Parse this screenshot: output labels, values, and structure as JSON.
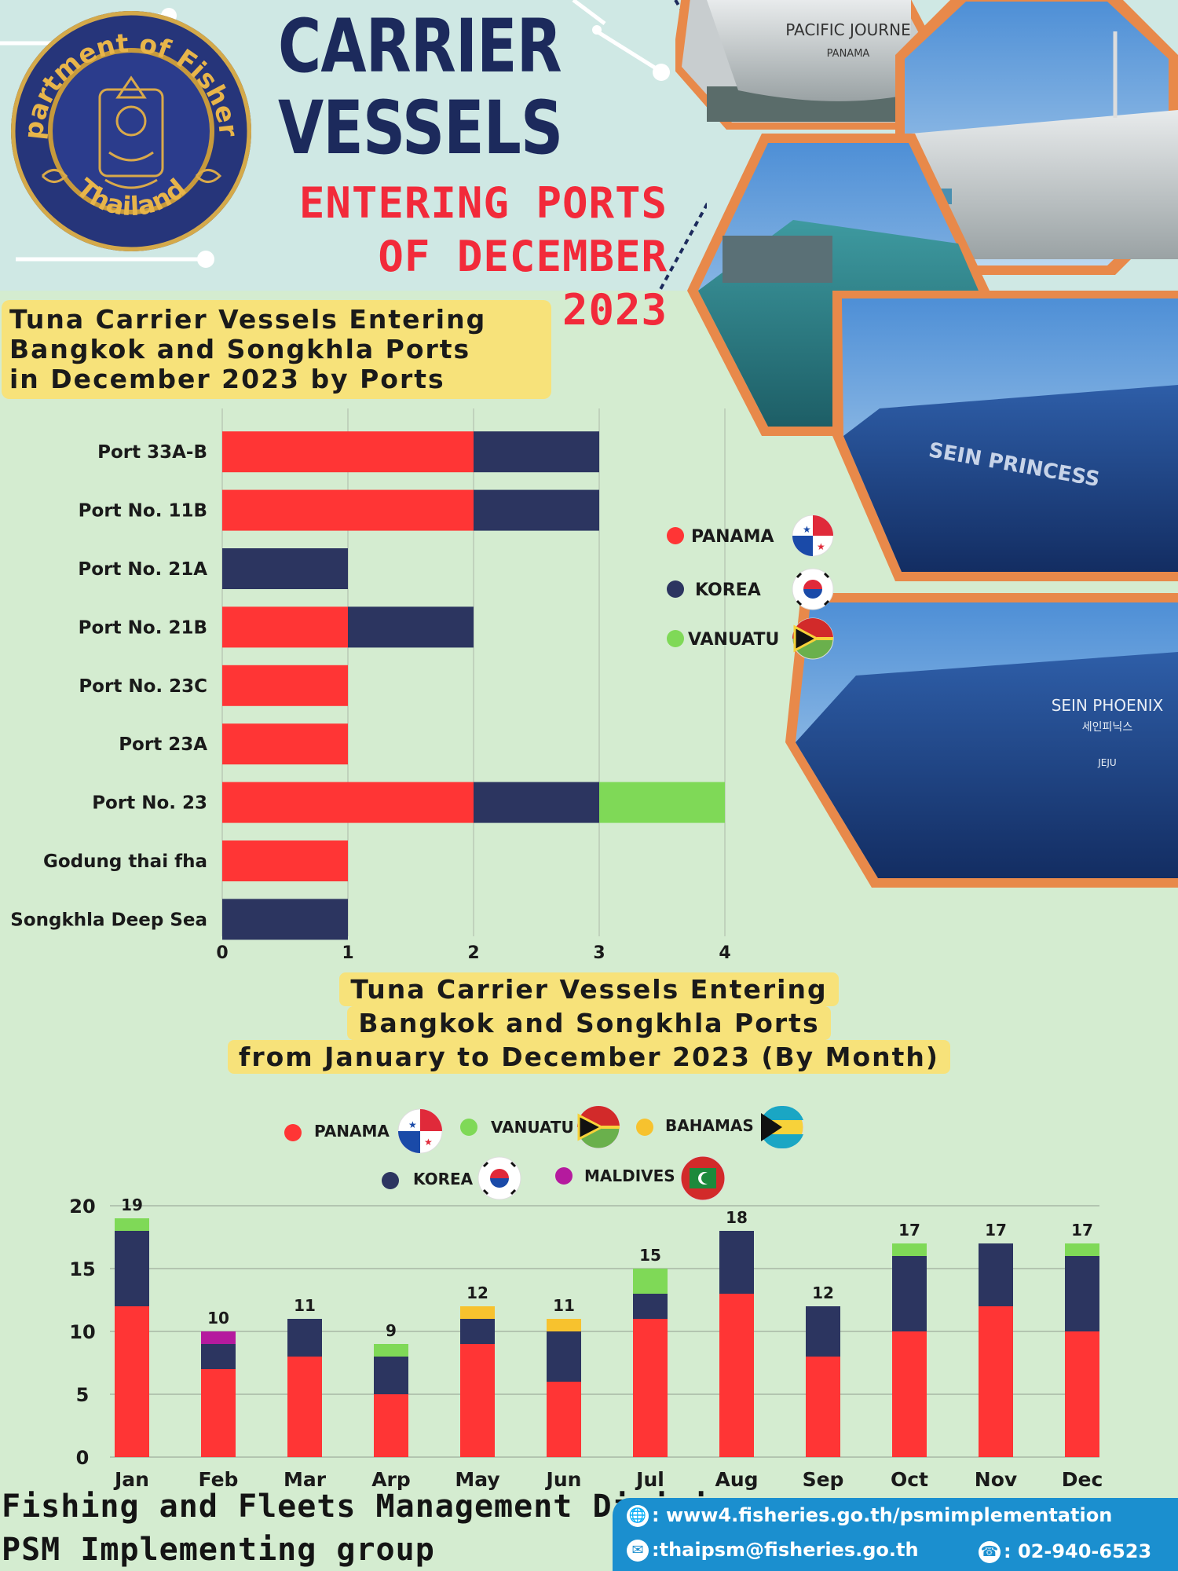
{
  "header": {
    "title_line1": "CARRIER",
    "title_line2": "VESSELS",
    "subtitle_line1": "ENTERING PORTS",
    "subtitle_line2": "OF DECEMBER 2023",
    "logo_text_top": "Department of Fisheries",
    "logo_text_bottom": "Thailand",
    "photo_labels": [
      "PACIFIC JOURNE",
      "PANAMA",
      "SEIN PRINCESS",
      "SEIN PHOENIX",
      "세인피닉스",
      "JEJU"
    ]
  },
  "colors": {
    "panama": "#ff3535",
    "korea": "#2c3560",
    "vanuatu": "#7fd957",
    "bahamas": "#f7c22e",
    "maldives": "#b51a9e",
    "title_navy": "#1c2a5c",
    "title_red": "#f22a3a",
    "highlight_yellow": "#f7e27a",
    "footer_blue": "#1b8fcf"
  },
  "chart1": {
    "title_lines": [
      "Tuna Carrier Vessels Entering",
      "Bangkok and Songkhla Ports",
      "in December 2023 by Ports"
    ]
  },
  "chart2": {
    "title_lines": [
      "Tuna Carrier Vessels Entering",
      "Bangkok and Songkhla Ports",
      "from January to December 2023 (By Month)"
    ]
  },
  "chart_data": [
    {
      "type": "bar",
      "orientation": "horizontal",
      "stacked": true,
      "title": "Tuna Carrier Vessels Entering Bangkok and Songkhla Ports in December 2023 by Ports",
      "categories": [
        "Port 33A-B",
        "Port No. 11B",
        "Port No. 21A",
        "Port No. 21B",
        "Port No. 23C",
        "Port 23A",
        "Port No. 23",
        "Godung thai fha",
        "Songkhla Deep Sea"
      ],
      "series": [
        {
          "name": "PANAMA",
          "values": [
            2,
            2,
            0,
            1,
            1,
            1,
            2,
            1,
            0
          ]
        },
        {
          "name": "KOREA",
          "values": [
            1,
            1,
            1,
            1,
            0,
            0,
            1,
            0,
            1
          ]
        },
        {
          "name": "VANUATU",
          "values": [
            0,
            0,
            0,
            0,
            0,
            0,
            1,
            0,
            0
          ]
        }
      ],
      "xlim": [
        0,
        4
      ],
      "xticks": [
        "0",
        "1",
        "2",
        "3",
        "4"
      ],
      "grid": true,
      "legend": "right"
    },
    {
      "type": "bar",
      "orientation": "vertical",
      "stacked": true,
      "title": "Tuna Carrier Vessels Entering Bangkok and Songkhla Ports from January to December 2023 (By Month)",
      "categories": [
        "Jan",
        "Feb",
        "Mar",
        "Arp",
        "May",
        "Jun",
        "Jul",
        "Aug",
        "Sep",
        "Oct",
        "Nov",
        "Dec"
      ],
      "series": [
        {
          "name": "PANAMA",
          "values": [
            12,
            7,
            8,
            5,
            9,
            6,
            11,
            13,
            8,
            10,
            12,
            10
          ]
        },
        {
          "name": "KOREA",
          "values": [
            6,
            2,
            3,
            3,
            2,
            4,
            2,
            5,
            4,
            6,
            5,
            6
          ]
        },
        {
          "name": "VANUATU",
          "values": [
            1,
            0,
            0,
            1,
            0,
            0,
            2,
            0,
            0,
            1,
            0,
            1
          ]
        },
        {
          "name": "BAHAMAS",
          "values": [
            0,
            0,
            0,
            0,
            1,
            1,
            0,
            0,
            0,
            0,
            0,
            0
          ]
        },
        {
          "name": "MALDIVES",
          "values": [
            0,
            1,
            0,
            0,
            0,
            0,
            0,
            0,
            0,
            0,
            0,
            0
          ]
        }
      ],
      "totals": [
        19,
        10,
        11,
        9,
        12,
        11,
        15,
        18,
        12,
        17,
        17,
        17
      ],
      "ylim": [
        0,
        20
      ],
      "yticks": [
        "0",
        "5",
        "10",
        "15",
        "20"
      ],
      "grid": true,
      "legend": "top"
    }
  ],
  "footer": {
    "division": "Fishing and Fleets Management Division",
    "group": "PSM Implementing group",
    "website": ": www4.fisheries.go.th/psmimplementation",
    "email": ":thaipsm@fisheries.go.th",
    "phone": ": 02-940-6523",
    "icons": [
      "globe-icon",
      "mail-icon",
      "phone-icon"
    ]
  }
}
